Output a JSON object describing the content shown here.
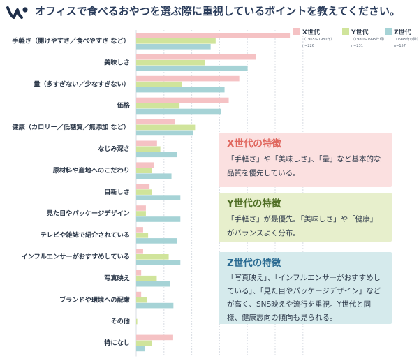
{
  "header": {
    "title": "オフィスで食べるおやつを選ぶ際に重視しているポイントを教えてください。"
  },
  "chart_data": {
    "type": "bar",
    "orientation": "horizontal",
    "categories": [
      "手軽さ（開けやすさ／食べやすさ など）",
      "美味しさ",
      "量（多すぎない／少なすぎない）",
      "価格",
      "健康（カロリー／低糖質／無添加 など）",
      "なじみ深さ",
      "原材料や産地へのこだわり",
      "目新しさ",
      "見た目やパッケージデザイン",
      "テレビや雑誌で紹介されている",
      "インフルエンサーがおすすめしている",
      "写真映え",
      "ブランドや環境への配慮",
      "その他",
      "特になし"
    ],
    "series": [
      {
        "name": "X世代",
        "sub": "（1965～1980年）",
        "n": "n=226",
        "color": "#f5c2c4",
        "values": [
          55.3,
          43.0,
          37.1,
          33.3,
          14.0,
          7.5,
          6.5,
          4.8,
          3.5,
          2.5,
          2.5,
          1.8,
          1.8,
          0,
          13.3
        ]
      },
      {
        "name": "Y世代",
        "sub": "（1980～1995年頃）",
        "n": "n=231",
        "color": "#d0e49b",
        "values": [
          28.6,
          24.7,
          16.5,
          15.6,
          21.2,
          8.7,
          5.6,
          5.6,
          3.5,
          4.3,
          11.7,
          7.4,
          3.9,
          0.4,
          5.6
        ]
      },
      {
        "name": "Z世代",
        "sub": "（1995年以降）",
        "n": "n=157",
        "color": "#a6d3d6",
        "values": [
          26.8,
          40.1,
          31.8,
          30.6,
          20.4,
          14.6,
          12.7,
          15.9,
          15.9,
          14.6,
          15.9,
          12.1,
          13.4,
          0,
          3.2
        ]
      }
    ],
    "xticks": [
      "10%",
      "20%",
      "30%",
      "40%",
      "50%",
      "60%"
    ],
    "xlim": [
      0,
      60
    ],
    "grid": true,
    "legend": "top-right"
  },
  "notes": {
    "x": {
      "heading": "X世代の特徴",
      "body": "「手軽さ」や「美味しさ」、「量」など基本的な品質を優先している。"
    },
    "y": {
      "heading": "Y世代の特徴",
      "body": "「手軽さ」が最優先。「美味しさ」や「健康」がバランスよく分布。"
    },
    "z": {
      "heading": "Z世代の特徴",
      "body": "「写真映え」、「インフルエンサーがおすすめしている」、「見た目やパッケージデザイン」などが高く、SNS映えや流行を重視。Y世代と同様、健康志向の傾向も見られる。"
    }
  }
}
